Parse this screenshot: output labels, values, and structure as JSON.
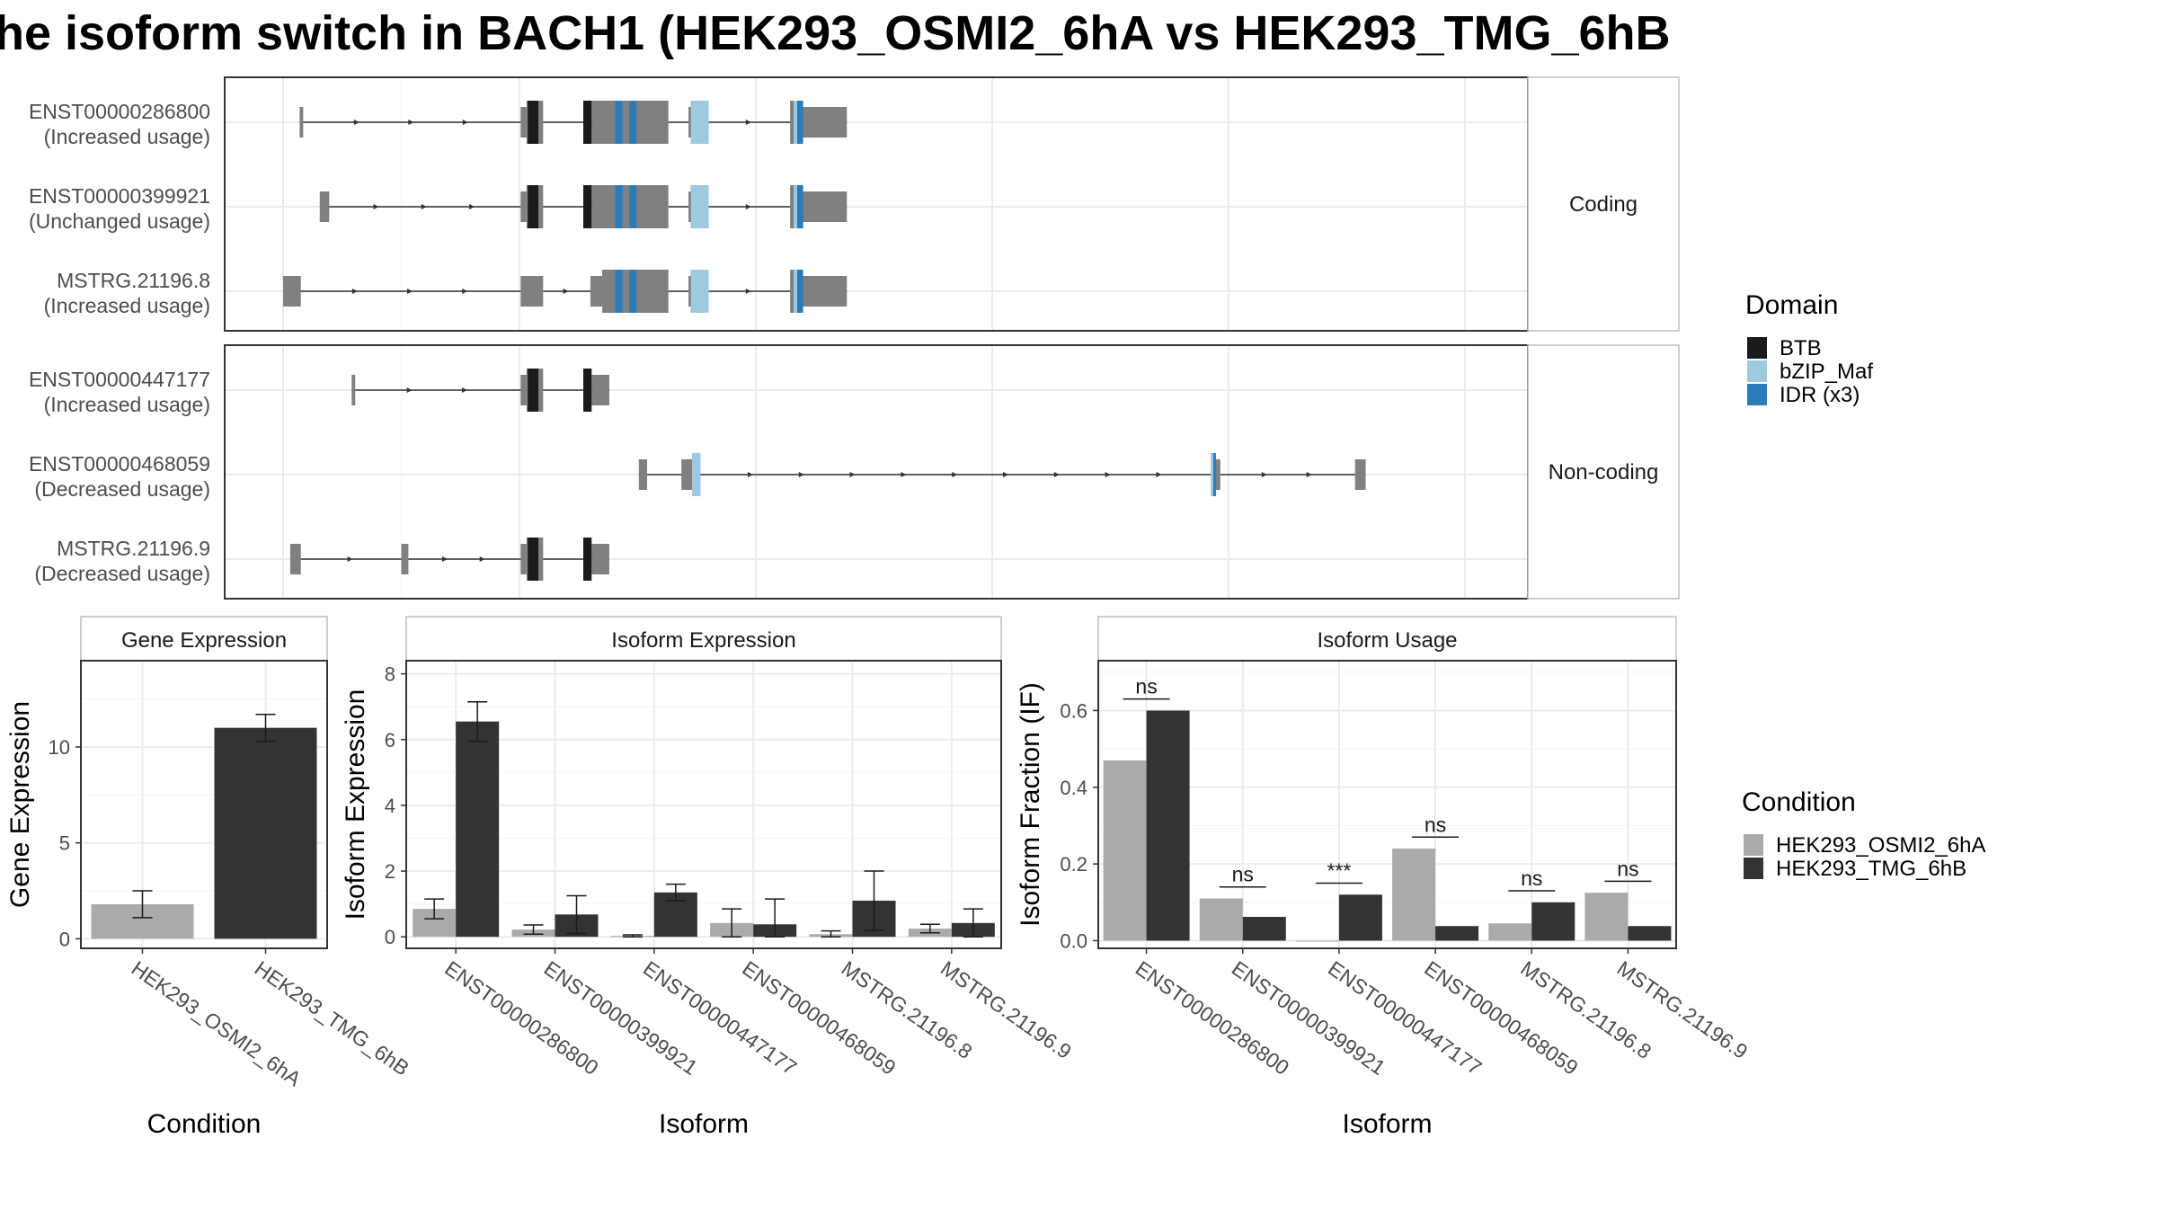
{
  "title": "he isoform switch in BACH1 (HEK293_OSMI2_6hA vs HEK293_TMG_6hB",
  "colors": {
    "exon": "#808080",
    "BTB": "#1a1a1a",
    "bZIP_Maf": "#9ecae1",
    "IDR": "#2b7bba",
    "cond_A": "#aaaaaa",
    "cond_B": "#333333",
    "grid": "#ebebeb",
    "strip_bg": "#ffffff",
    "axis_text": "#4d4d4d"
  },
  "structure": {
    "x_domain": [
      0,
      1000
    ],
    "facets": [
      {
        "label": "Coding",
        "transcripts": [
          {
            "name": "ENST00000286800",
            "usage": "(Increased usage)",
            "exons": [
              [
                14,
                17,
                "thin"
              ],
              [
                201,
                206,
                "thin"
              ],
              [
                206,
                220,
                "thick"
              ],
              [
                254,
                261,
                "thick"
              ],
              [
                261,
                326,
                "thick"
              ],
              [
                343,
                345,
                "thin"
              ],
              [
                345,
                360,
                "thick"
              ],
              [
                429,
                439,
                "thick"
              ],
              [
                439,
                477,
                "thin"
              ]
            ],
            "domains": [
              [
                207,
                216,
                "BTB"
              ],
              [
                254,
                261,
                "BTB"
              ],
              [
                281,
                287,
                "IDR"
              ],
              [
                293,
                299,
                "IDR"
              ],
              [
                345,
                360,
                "bZIP_Maf"
              ],
              [
                432,
                435,
                "bZIP_Maf"
              ],
              [
                435,
                440,
                "IDR"
              ]
            ]
          },
          {
            "name": "ENST00000399921",
            "usage": "(Unchanged usage)",
            "exons": [
              [
                31,
                39,
                "thin"
              ],
              [
                201,
                206,
                "thin"
              ],
              [
                206,
                220,
                "thick"
              ],
              [
                254,
                261,
                "thick"
              ],
              [
                261,
                326,
                "thick"
              ],
              [
                343,
                345,
                "thin"
              ],
              [
                345,
                360,
                "thick"
              ],
              [
                429,
                439,
                "thick"
              ],
              [
                439,
                477,
                "thin"
              ]
            ],
            "domains": [
              [
                207,
                216,
                "BTB"
              ],
              [
                254,
                261,
                "BTB"
              ],
              [
                281,
                287,
                "IDR"
              ],
              [
                293,
                299,
                "IDR"
              ],
              [
                345,
                360,
                "bZIP_Maf"
              ],
              [
                432,
                435,
                "bZIP_Maf"
              ],
              [
                435,
                440,
                "IDR"
              ]
            ]
          },
          {
            "name": "MSTRG.21196.8",
            "usage": "(Increased usage)",
            "exons": [
              [
                0,
                15,
                "thin"
              ],
              [
                201,
                220,
                "thin"
              ],
              [
                260,
                270,
                "thin"
              ],
              [
                270,
                326,
                "thick"
              ],
              [
                343,
                345,
                "thin"
              ],
              [
                345,
                360,
                "thick"
              ],
              [
                429,
                439,
                "thick"
              ],
              [
                439,
                477,
                "thin"
              ]
            ],
            "domains": [
              [
                281,
                287,
                "IDR"
              ],
              [
                293,
                299,
                "IDR"
              ],
              [
                345,
                360,
                "bZIP_Maf"
              ],
              [
                432,
                435,
                "bZIP_Maf"
              ],
              [
                435,
                440,
                "IDR"
              ]
            ]
          }
        ]
      },
      {
        "label": "Non-coding",
        "transcripts": [
          {
            "name": "ENST00000447177",
            "usage": "(Increased usage)",
            "exons": [
              [
                58,
                61,
                "thin"
              ],
              [
                201,
                206,
                "thin"
              ],
              [
                206,
                220,
                "thick"
              ],
              [
                254,
                261,
                "thick"
              ],
              [
                261,
                276,
                "thin"
              ]
            ],
            "domains": [
              [
                207,
                216,
                "BTB"
              ],
              [
                254,
                261,
                "BTB"
              ]
            ]
          },
          {
            "name": "ENST00000468059",
            "usage": "(Decreased usage)",
            "exons": [
              [
                301,
                308,
                "thin"
              ],
              [
                337,
                346,
                "thin"
              ],
              [
                346,
                353,
                "thick"
              ],
              [
                785,
                788,
                "thick"
              ],
              [
                788,
                793,
                "thin"
              ],
              [
                907,
                916,
                "thin"
              ]
            ],
            "domains": [
              [
                346,
                353,
                "bZIP_Maf"
              ],
              [
                785,
                787,
                "bZIP_Maf"
              ],
              [
                787,
                788,
                "IDR"
              ]
            ]
          },
          {
            "name": "MSTRG.21196.9",
            "usage": "(Decreased usage)",
            "exons": [
              [
                6,
                15,
                "thin"
              ],
              [
                100,
                106,
                "thin"
              ],
              [
                201,
                206,
                "thin"
              ],
              [
                206,
                220,
                "thick"
              ],
              [
                254,
                261,
                "thick"
              ],
              [
                261,
                276,
                "thin"
              ]
            ],
            "domains": [
              [
                207,
                216,
                "BTB"
              ],
              [
                254,
                261,
                "BTB"
              ]
            ]
          }
        ]
      }
    ]
  },
  "legends": {
    "domain": {
      "title": "Domain",
      "items": [
        {
          "label": "BTB",
          "color": "#1a1a1a"
        },
        {
          "label": "bZIP_Maf",
          "color": "#9ecae1"
        },
        {
          "label": "IDR (x3)",
          "color": "#2b7bba"
        }
      ]
    },
    "condition": {
      "title": "Condition",
      "items": [
        {
          "label": "HEK293_OSMI2_6hA",
          "color": "#aaaaaa"
        },
        {
          "label": "HEK293_TMG_6hB",
          "color": "#333333"
        }
      ]
    }
  },
  "chart_data": [
    {
      "type": "bar",
      "title": "Gene Expression",
      "xlabel": "Condition",
      "ylabel": "Gene Expression",
      "ylim": [
        -0.5,
        14.5
      ],
      "yticks": [
        0,
        5,
        10
      ],
      "categories": [
        "HEK293_OSMI2_6hA",
        "HEK293_TMG_6hB"
      ],
      "values": [
        1.8,
        11.0
      ],
      "errors": [
        [
          1.1,
          2.5
        ],
        [
          10.3,
          11.7
        ]
      ]
    },
    {
      "type": "bar",
      "title": "Isoform Expression",
      "xlabel": "Isoform",
      "ylabel": "Isoform Expression",
      "ylim": [
        -0.35,
        8.4
      ],
      "yticks": [
        0,
        2,
        4,
        6,
        8
      ],
      "categories": [
        "ENST00000286800",
        "ENST00000399921",
        "ENST00000447177",
        "ENST00000468059",
        "MSTRG.21196.8",
        "MSTRG.21196.9"
      ],
      "series": [
        {
          "name": "HEK293_OSMI2_6hA",
          "values": [
            0.85,
            0.22,
            0.03,
            0.42,
            0.08,
            0.25
          ],
          "errors": [
            [
              0.55,
              1.15
            ],
            [
              0.08,
              0.36
            ],
            [
              0.0,
              0.06
            ],
            [
              0.0,
              0.85
            ],
            [
              0.0,
              0.18
            ],
            [
              0.12,
              0.38
            ]
          ]
        },
        {
          "name": "HEK293_TMG_6hB",
          "values": [
            6.55,
            0.68,
            1.35,
            0.38,
            1.1,
            0.42
          ],
          "errors": [
            [
              5.95,
              7.15
            ],
            [
              0.1,
              1.25
            ],
            [
              1.1,
              1.6
            ],
            [
              0.0,
              1.15
            ],
            [
              0.2,
              2.0
            ],
            [
              0.0,
              0.85
            ]
          ]
        }
      ]
    },
    {
      "type": "bar",
      "title": "Isoform Usage",
      "xlabel": "Isoform",
      "ylabel": "Isoform Fraction (IF)",
      "ylim": [
        -0.02,
        0.73
      ],
      "yticks": [
        0.0,
        0.2,
        0.4,
        0.6
      ],
      "ytick_labels": [
        "0.0",
        "0.2",
        "0.4",
        "0.6"
      ],
      "categories": [
        "ENST00000286800",
        "ENST00000399921",
        "ENST00000447177",
        "ENST00000468059",
        "MSTRG.21196.8",
        "MSTRG.21196.9"
      ],
      "series": [
        {
          "name": "HEK293_OSMI2_6hA",
          "values": [
            0.47,
            0.11,
            0.0,
            0.24,
            0.045,
            0.125
          ]
        },
        {
          "name": "HEK293_TMG_6hB",
          "values": [
            0.6,
            0.062,
            0.12,
            0.038,
            0.1,
            0.038
          ]
        }
      ],
      "significance": [
        {
          "label": "ns",
          "y": 0.63
        },
        {
          "label": "ns",
          "y": 0.14
        },
        {
          "label": "***",
          "y": 0.15
        },
        {
          "label": "ns",
          "y": 0.27
        },
        {
          "label": "ns",
          "y": 0.13
        },
        {
          "label": "ns",
          "y": 0.155
        }
      ]
    }
  ]
}
